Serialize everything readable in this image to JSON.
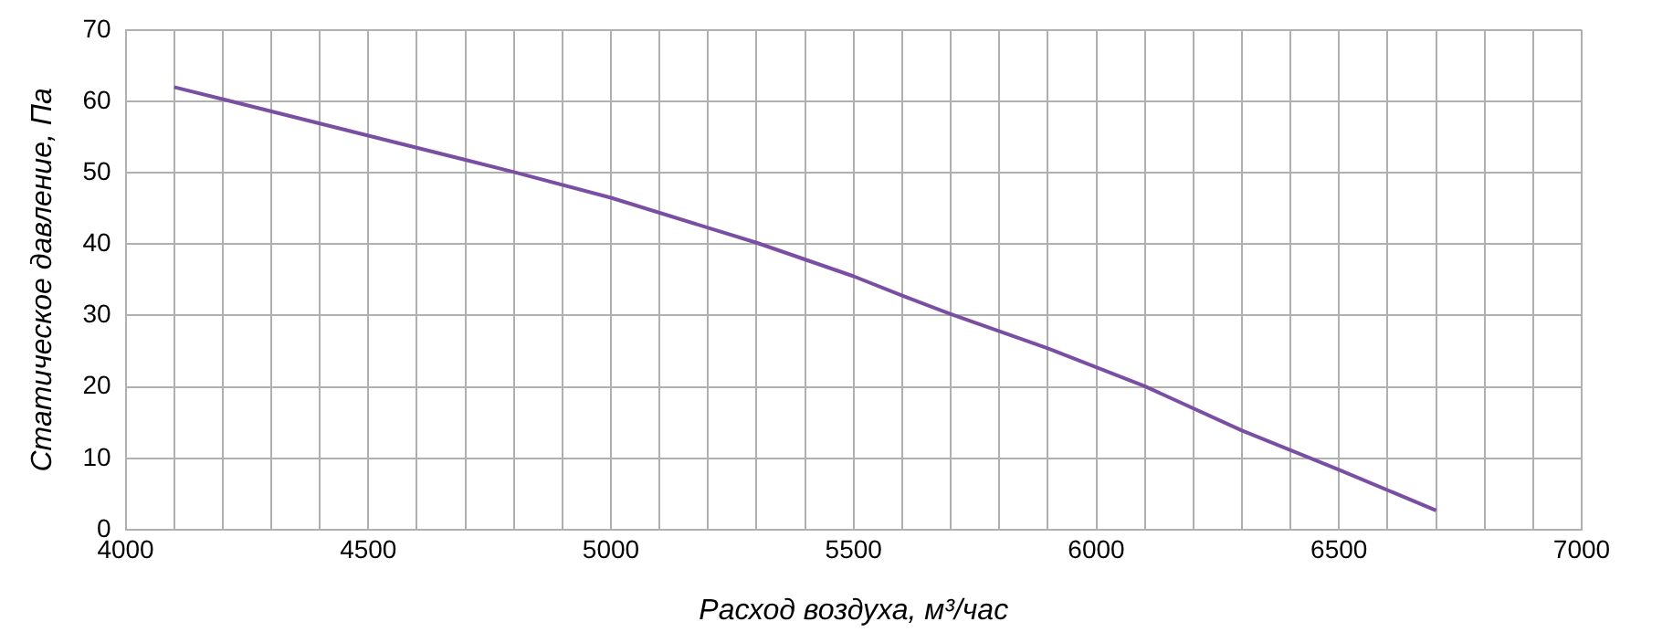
{
  "chart_data": {
    "type": "line",
    "xlabel": "Расход воздуха, м³/час",
    "ylabel": "Статическое давление, Па",
    "series": [
      {
        "color": "#7a4fa3",
        "x": [
          4100,
          4500,
          4800,
          5000,
          5200,
          5300,
          5500,
          5600,
          5700,
          5900,
          6100,
          6300,
          6500,
          6700
        ],
        "values": [
          62,
          55.2,
          50.1,
          46.5,
          42.3,
          40.2,
          35.5,
          32.8,
          30.2,
          25.4,
          20.1,
          13.9,
          8.4,
          2.7
        ]
      }
    ],
    "xlim": [
      4000,
      7000
    ],
    "xticks": [
      4000,
      {
        "value": 4100,
        "label": null
      },
      {
        "value": 4200,
        "label": null
      },
      {
        "value": 4300,
        "label": null
      },
      {
        "value": 4400,
        "label": null
      },
      4500,
      {
        "value": 4600,
        "label": null
      },
      {
        "value": 4700,
        "label": null
      },
      {
        "value": 4800,
        "label": null
      },
      {
        "value": 4900,
        "label": null
      },
      5000,
      {
        "value": 5100,
        "label": null
      },
      {
        "value": 5200,
        "label": null
      },
      {
        "value": 5300,
        "label": null
      },
      {
        "value": 5400,
        "label": null
      },
      5500,
      {
        "value": 5600,
        "label": null
      },
      {
        "value": 5700,
        "label": null
      },
      {
        "value": 5800,
        "label": null
      },
      {
        "value": 5900,
        "label": null
      },
      6000,
      {
        "value": 6100,
        "label": null
      },
      {
        "value": 6200,
        "label": null
      },
      {
        "value": 6300,
        "label": null
      },
      {
        "value": 6400,
        "label": null
      },
      6500,
      {
        "value": 6600,
        "label": null
      },
      {
        "value": 6700,
        "label": null
      },
      {
        "value": 6800,
        "label": null
      },
      {
        "value": 6900,
        "label": null
      },
      7000
    ],
    "ylim": [
      0,
      70
    ],
    "yticks": [
      0,
      10,
      20,
      30,
      40,
      50,
      60,
      70
    ],
    "grid": true,
    "legend": false,
    "marker": "none",
    "line_style": "solid"
  }
}
